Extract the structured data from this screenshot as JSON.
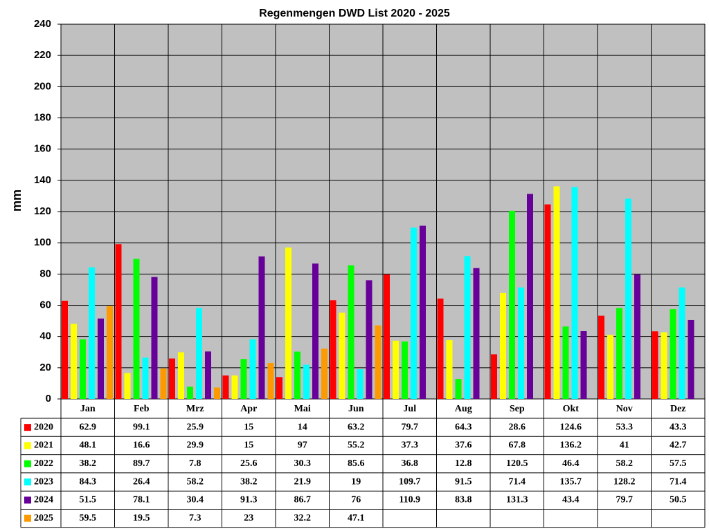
{
  "chart_data": {
    "type": "bar",
    "title": "Regenmengen DWD List 2020 - 2025",
    "y_label": "mm",
    "categories": [
      "Jan",
      "Feb",
      "Mrz",
      "Apr",
      "Mai",
      "Jun",
      "Jul",
      "Aug",
      "Sep",
      "Okt",
      "Nov",
      "Dez"
    ],
    "series": [
      {
        "name": "2020",
        "color": "#ff0000",
        "values": [
          62.9,
          99.1,
          25.9,
          15,
          14,
          63.2,
          79.7,
          64.3,
          28.6,
          124.6,
          53.3,
          43.3
        ]
      },
      {
        "name": "2021",
        "color": "#ffff00",
        "values": [
          48.1,
          16.6,
          29.9,
          15,
          97,
          55.2,
          37.3,
          37.6,
          67.8,
          136.2,
          41,
          42.7
        ]
      },
      {
        "name": "2022",
        "color": "#00ff00",
        "values": [
          38.2,
          89.7,
          7.8,
          25.6,
          30.3,
          85.6,
          36.8,
          12.8,
          120.5,
          46.4,
          58.2,
          57.5
        ]
      },
      {
        "name": "2023",
        "color": "#00ffff",
        "values": [
          84.3,
          26.4,
          58.2,
          38.2,
          21.9,
          19,
          109.7,
          91.5,
          71.4,
          135.7,
          128.2,
          71.4
        ]
      },
      {
        "name": "2024",
        "color": "#660099",
        "values": [
          51.5,
          78.1,
          30.4,
          91.3,
          86.7,
          76,
          110.9,
          83.8,
          131.3,
          43.4,
          79.7,
          50.5
        ]
      },
      {
        "name": "2025",
        "color": "#ff9900",
        "values": [
          59.5,
          19.5,
          7.3,
          23,
          32.2,
          47.1,
          null,
          null,
          null,
          null,
          null,
          null
        ]
      }
    ],
    "ylim": [
      0,
      240
    ],
    "yticks": [
      0,
      20,
      40,
      60,
      80,
      100,
      120,
      140,
      160,
      180,
      200,
      220,
      240
    ],
    "grid": true,
    "data_table": true
  }
}
